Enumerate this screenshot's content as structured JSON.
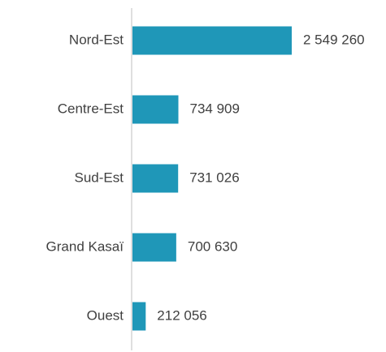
{
  "chart_data": {
    "type": "bar",
    "orientation": "horizontal",
    "categories": [
      "Nord-Est",
      "Centre-Est",
      "Sud-Est",
      "Grand Kasaï",
      "Ouest"
    ],
    "values": [
      2549260,
      734909,
      731026,
      700630,
      212056
    ],
    "value_labels": [
      "2 549 260",
      "734 909",
      "731 026",
      "700 630",
      "212 056"
    ],
    "color": "#1f97b8"
  }
}
